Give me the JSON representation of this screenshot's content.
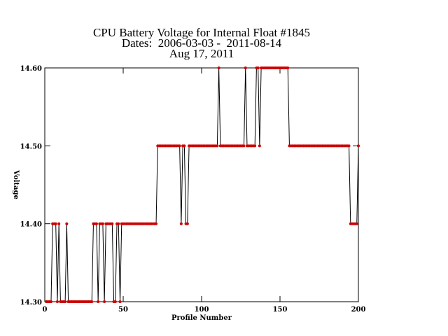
{
  "chart_data": {
    "type": "line",
    "title_lines": [
      "CPU Battery Voltage for Internal Float #1845",
      "Dates:  2006-03-03 -  2011-08-14",
      "Aug 17, 2011"
    ],
    "x_label": "Profile Number",
    "y_label": "Voltage",
    "xlim": [
      0,
      200
    ],
    "xticks": [
      0,
      50,
      100,
      150,
      200
    ],
    "ylim": [
      14.3,
      14.6
    ],
    "yticks": [
      {
        "value": 14.3,
        "label": "14.30"
      },
      {
        "value": 14.4,
        "label": "14.40"
      },
      {
        "value": 14.5,
        "label": "14.50"
      },
      {
        "value": 14.6,
        "label": "14.60"
      }
    ],
    "line_color": "#000000",
    "marker_color": "#cc0000",
    "x": [
      1,
      2,
      3,
      4,
      5,
      6,
      7,
      8,
      9,
      10,
      11,
      12,
      13,
      14,
      15,
      16,
      17,
      18,
      19,
      20,
      21,
      22,
      23,
      24,
      25,
      26,
      27,
      28,
      29,
      30,
      31,
      32,
      33,
      34,
      35,
      36,
      37,
      38,
      39,
      40,
      41,
      42,
      43,
      44,
      45,
      46,
      47,
      48,
      49,
      50,
      51,
      52,
      53,
      54,
      55,
      56,
      57,
      58,
      59,
      60,
      61,
      62,
      63,
      64,
      65,
      66,
      67,
      68,
      69,
      70,
      71,
      72,
      73,
      74,
      75,
      76,
      77,
      78,
      79,
      80,
      81,
      82,
      83,
      84,
      85,
      86,
      87,
      88,
      89,
      90,
      91,
      92,
      93,
      94,
      95,
      96,
      97,
      98,
      99,
      100,
      101,
      102,
      103,
      104,
      105,
      106,
      107,
      108,
      109,
      110,
      111,
      112,
      113,
      114,
      115,
      116,
      117,
      118,
      119,
      120,
      121,
      122,
      123,
      124,
      125,
      126,
      127,
      128,
      129,
      130,
      131,
      132,
      133,
      134,
      135,
      136,
      137,
      138,
      139,
      140,
      141,
      142,
      143,
      144,
      145,
      146,
      147,
      148,
      149,
      150,
      151,
      152,
      153,
      154,
      155,
      156,
      157,
      158,
      159,
      160,
      161,
      162,
      163,
      164,
      165,
      166,
      167,
      168,
      169,
      170,
      171,
      172,
      173,
      174,
      175,
      176,
      177,
      178,
      179,
      180,
      181,
      182,
      183,
      184,
      185,
      186,
      187,
      188,
      189,
      190,
      191,
      192,
      193,
      194,
      195,
      196,
      197,
      198,
      199,
      200
    ],
    "values": [
      14.3,
      14.3,
      14.3,
      14.3,
      14.4,
      14.4,
      14.4,
      14.3,
      14.4,
      14.3,
      14.3,
      14.3,
      14.3,
      14.4,
      14.3,
      14.3,
      14.3,
      14.3,
      14.3,
      14.3,
      14.3,
      14.3,
      14.3,
      14.3,
      14.3,
      14.3,
      14.3,
      14.3,
      14.3,
      14.3,
      14.4,
      14.4,
      14.4,
      14.3,
      14.4,
      14.4,
      14.4,
      14.3,
      14.4,
      14.4,
      14.4,
      14.4,
      14.4,
      14.3,
      14.3,
      14.4,
      14.4,
      14.3,
      14.4,
      14.4,
      14.4,
      14.4,
      14.4,
      14.4,
      14.4,
      14.4,
      14.4,
      14.4,
      14.4,
      14.4,
      14.4,
      14.4,
      14.4,
      14.4,
      14.4,
      14.4,
      14.4,
      14.4,
      14.4,
      14.4,
      14.4,
      14.5,
      14.5,
      14.5,
      14.5,
      14.5,
      14.5,
      14.5,
      14.5,
      14.5,
      14.5,
      14.5,
      14.5,
      14.5,
      14.5,
      14.5,
      14.4,
      14.5,
      14.5,
      14.4,
      14.4,
      14.5,
      14.5,
      14.5,
      14.5,
      14.5,
      14.5,
      14.5,
      14.5,
      14.5,
      14.5,
      14.5,
      14.5,
      14.5,
      14.5,
      14.5,
      14.5,
      14.5,
      14.5,
      14.5,
      14.6,
      14.5,
      14.5,
      14.5,
      14.5,
      14.5,
      14.5,
      14.5,
      14.5,
      14.5,
      14.5,
      14.5,
      14.5,
      14.5,
      14.5,
      14.5,
      14.5,
      14.6,
      14.5,
      14.5,
      14.5,
      14.5,
      14.5,
      14.5,
      14.6,
      14.6,
      14.5,
      14.6,
      14.6,
      14.6,
      14.6,
      14.6,
      14.6,
      14.6,
      14.6,
      14.6,
      14.6,
      14.6,
      14.6,
      14.6,
      14.6,
      14.6,
      14.6,
      14.6,
      14.6,
      14.5,
      14.5,
      14.5,
      14.5,
      14.5,
      14.5,
      14.5,
      14.5,
      14.5,
      14.5,
      14.5,
      14.5,
      14.5,
      14.5,
      14.5,
      14.5,
      14.5,
      14.5,
      14.5,
      14.5,
      14.5,
      14.5,
      14.5,
      14.5,
      14.5,
      14.5,
      14.5,
      14.5,
      14.5,
      14.5,
      14.5,
      14.5,
      14.5,
      14.5,
      14.5,
      14.5,
      14.5,
      14.5,
      14.5,
      14.4,
      14.4,
      14.4,
      14.4,
      14.4,
      14.5
    ]
  }
}
